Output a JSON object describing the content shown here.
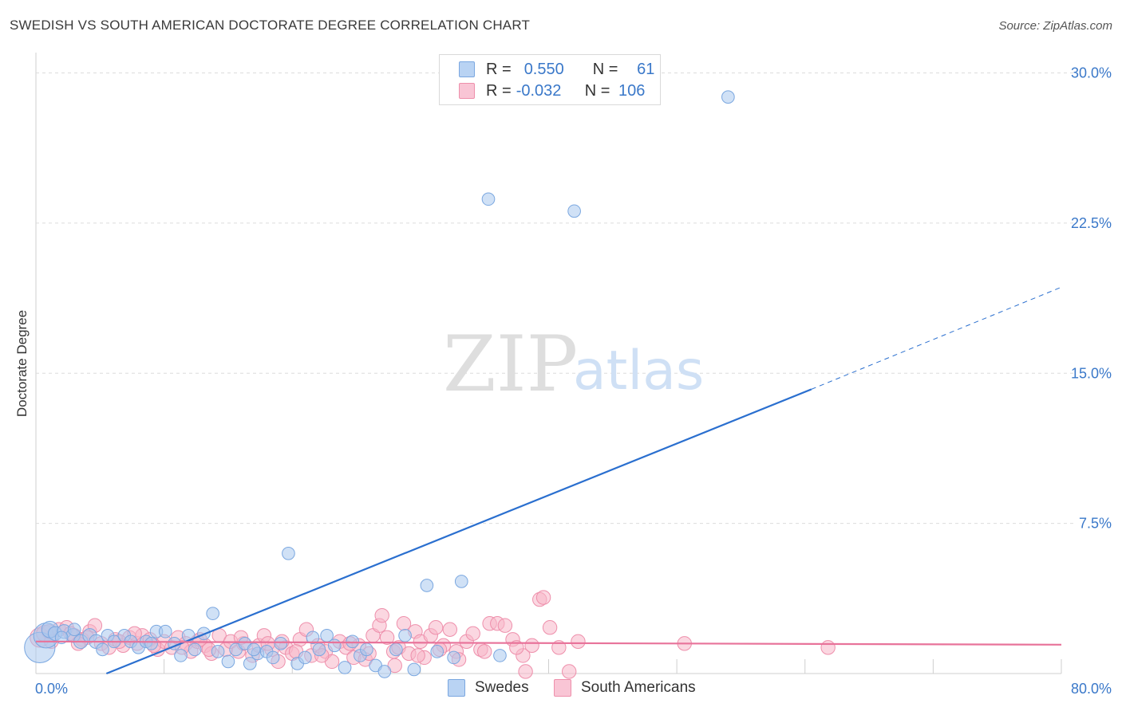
{
  "title": "SWEDISH VS SOUTH AMERICAN DOCTORATE DEGREE CORRELATION CHART",
  "source": "Source: ZipAtlas.com",
  "legend": {
    "rows": [
      {
        "r_label": "R =",
        "r_value": "0.550",
        "n_label": "N =",
        "n_value": "61"
      },
      {
        "r_label": "R =",
        "r_value": "-0.032",
        "n_label": "N =",
        "n_value": "106"
      }
    ]
  },
  "bottom_legend": {
    "swedes": "Swedes",
    "south_americans": "South Americans"
  },
  "watermark": {
    "zip": "ZIP",
    "atlas": "atlas"
  },
  "colors": {
    "swedes_fill": "#a9c8ef",
    "swedes_stroke": "#7aa7e0",
    "swedes_line": "#2a6fcf",
    "sa_fill": "#f7b6c9",
    "sa_stroke": "#ee8fab",
    "sa_line": "#e8739a",
    "grid": "#dcdcdc",
    "tick_text": "#3a78c9"
  },
  "chart_data": {
    "type": "scatter",
    "title": "SWEDISH VS SOUTH AMERICAN DOCTORATE DEGREE CORRELATION CHART",
    "xlabel": "",
    "ylabel": "Doctorate Degree",
    "xlim": [
      0,
      80
    ],
    "ylim": [
      0,
      30.5
    ],
    "x_tick_labels": [
      "0.0%",
      "80.0%"
    ],
    "y_ticks": [
      7.5,
      15.0,
      22.5,
      30.0
    ],
    "y_tick_labels": [
      "7.5%",
      "15.0%",
      "22.5%",
      "30.0%"
    ],
    "grid": true,
    "series": [
      {
        "name": "Swedes",
        "points": [
          [
            0.3,
            1.3,
            22
          ],
          [
            0.8,
            1.9,
            18
          ],
          [
            1.1,
            2.2,
            12
          ],
          [
            1.5,
            2.0,
            10
          ],
          [
            2.2,
            2.1,
            10
          ],
          [
            2.9,
            1.9,
            10
          ],
          [
            3.5,
            1.6,
            10
          ],
          [
            4.2,
            1.9,
            10
          ],
          [
            4.7,
            1.6,
            10
          ],
          [
            5.2,
            1.2,
            9
          ],
          [
            5.6,
            1.9,
            9
          ],
          [
            6.1,
            1.6,
            9
          ],
          [
            6.9,
            1.9,
            9
          ],
          [
            7.4,
            1.6,
            9
          ],
          [
            8.0,
            1.3,
            9
          ],
          [
            8.6,
            1.6,
            9
          ],
          [
            9.4,
            2.1,
            9
          ],
          [
            10.1,
            2.1,
            9
          ],
          [
            10.8,
            1.5,
            9
          ],
          [
            11.3,
            0.9,
            9
          ],
          [
            11.9,
            1.9,
            9
          ],
          [
            12.4,
            1.2,
            9
          ],
          [
            13.1,
            2.0,
            9
          ],
          [
            13.8,
            3.0,
            9
          ],
          [
            14.2,
            1.1,
            9
          ],
          [
            15.0,
            0.6,
            9
          ],
          [
            15.6,
            1.2,
            9
          ],
          [
            16.3,
            1.5,
            9
          ],
          [
            16.7,
            0.5,
            9
          ],
          [
            17.3,
            1.0,
            9
          ],
          [
            18.0,
            1.1,
            9
          ],
          [
            18.5,
            0.8,
            9
          ],
          [
            19.1,
            1.5,
            9
          ],
          [
            19.7,
            6.0,
            9
          ],
          [
            20.4,
            0.5,
            9
          ],
          [
            21.0,
            0.8,
            9
          ],
          [
            21.6,
            1.8,
            9
          ],
          [
            22.1,
            1.2,
            9
          ],
          [
            22.7,
            1.9,
            9
          ],
          [
            23.3,
            1.4,
            9
          ],
          [
            24.1,
            0.3,
            9
          ],
          [
            24.7,
            1.6,
            9
          ],
          [
            25.3,
            0.9,
            9
          ],
          [
            25.8,
            1.2,
            9
          ],
          [
            26.5,
            0.4,
            9
          ],
          [
            27.2,
            0.1,
            9
          ],
          [
            28.1,
            1.2,
            9
          ],
          [
            28.8,
            1.9,
            9
          ],
          [
            29.5,
            0.2,
            9
          ],
          [
            30.5,
            4.4,
            9
          ],
          [
            31.3,
            1.1,
            9
          ],
          [
            32.6,
            0.8,
            9
          ],
          [
            33.2,
            4.6,
            9
          ],
          [
            36.2,
            0.9,
            9
          ],
          [
            35.3,
            23.7,
            9
          ],
          [
            42.0,
            23.1,
            9
          ],
          [
            54.0,
            28.8,
            9
          ],
          [
            3.0,
            2.2,
            9
          ],
          [
            2.0,
            1.8,
            9
          ],
          [
            9.0,
            1.5,
            9
          ],
          [
            17.0,
            1.2,
            9
          ]
        ],
        "trend": {
          "x1": 5.5,
          "y1": 0.0,
          "x2": 60.5,
          "y2": 14.2,
          "dash_to_x": 80.0,
          "dash_to_y": 19.3
        }
      },
      {
        "name": "South Americans",
        "points": [
          [
            0.3,
            1.8,
            14
          ],
          [
            0.7,
            2.0,
            12
          ],
          [
            1.2,
            1.6,
            10
          ],
          [
            1.8,
            2.2,
            10
          ],
          [
            2.4,
            2.3,
            10
          ],
          [
            3.0,
            1.9,
            10
          ],
          [
            3.6,
            1.7,
            10
          ],
          [
            4.2,
            2.1,
            10
          ],
          [
            4.6,
            2.4,
            10
          ],
          [
            5.1,
            1.5,
            10
          ],
          [
            5.7,
            1.3,
            10
          ],
          [
            6.2,
            1.7,
            10
          ],
          [
            6.8,
            1.4,
            10
          ],
          [
            7.3,
            1.8,
            10
          ],
          [
            7.9,
            1.5,
            10
          ],
          [
            8.3,
            1.9,
            10
          ],
          [
            8.9,
            1.7,
            10
          ],
          [
            9.5,
            1.2,
            10
          ],
          [
            10.0,
            1.6,
            10
          ],
          [
            10.6,
            1.3,
            10
          ],
          [
            11.1,
            1.8,
            10
          ],
          [
            11.7,
            1.5,
            10
          ],
          [
            12.1,
            1.1,
            10
          ],
          [
            12.6,
            1.6,
            10
          ],
          [
            13.2,
            1.4,
            10
          ],
          [
            13.7,
            1.0,
            10
          ],
          [
            14.3,
            1.9,
            10
          ],
          [
            14.8,
            1.2,
            10
          ],
          [
            15.2,
            1.6,
            10
          ],
          [
            15.8,
            1.1,
            10
          ],
          [
            16.2,
            1.5,
            10
          ],
          [
            16.9,
            0.9,
            10
          ],
          [
            17.4,
            1.4,
            10
          ],
          [
            17.8,
            1.9,
            10
          ],
          [
            18.4,
            1.2,
            10
          ],
          [
            18.9,
            0.6,
            10
          ],
          [
            19.5,
            1.3,
            10
          ],
          [
            20.0,
            1.0,
            10
          ],
          [
            20.6,
            1.7,
            10
          ],
          [
            21.1,
            2.2,
            10
          ],
          [
            21.5,
            0.9,
            10
          ],
          [
            22.0,
            1.4,
            10
          ],
          [
            22.6,
            1.1,
            10
          ],
          [
            23.1,
            0.6,
            10
          ],
          [
            23.7,
            1.6,
            10
          ],
          [
            24.2,
            1.3,
            10
          ],
          [
            24.8,
            0.8,
            10
          ],
          [
            25.2,
            1.4,
            10
          ],
          [
            25.7,
            0.7,
            10
          ],
          [
            26.3,
            1.9,
            10
          ],
          [
            26.8,
            2.4,
            10
          ],
          [
            27.0,
            2.9,
            10
          ],
          [
            27.4,
            1.8,
            10
          ],
          [
            27.9,
            1.1,
            10
          ],
          [
            28.3,
            1.3,
            10
          ],
          [
            28.7,
            2.5,
            10
          ],
          [
            29.1,
            1.0,
            10
          ],
          [
            29.6,
            2.1,
            10
          ],
          [
            30.0,
            1.6,
            10
          ],
          [
            30.3,
            0.8,
            10
          ],
          [
            30.8,
            1.9,
            10
          ],
          [
            31.2,
            2.3,
            10
          ],
          [
            31.8,
            1.4,
            10
          ],
          [
            32.3,
            2.2,
            10
          ],
          [
            32.8,
            1.1,
            10
          ],
          [
            33.6,
            1.6,
            10
          ],
          [
            34.1,
            2.0,
            10
          ],
          [
            34.7,
            1.2,
            10
          ],
          [
            35.4,
            2.5,
            10
          ],
          [
            36.0,
            2.5,
            10
          ],
          [
            36.6,
            2.4,
            10
          ],
          [
            37.2,
            1.7,
            10
          ],
          [
            38.0,
            0.9,
            10
          ],
          [
            38.7,
            1.4,
            10
          ],
          [
            39.3,
            3.7,
            10
          ],
          [
            39.6,
            3.8,
            10
          ],
          [
            40.1,
            2.3,
            10
          ],
          [
            40.8,
            1.3,
            10
          ],
          [
            41.6,
            0.1,
            10
          ],
          [
            42.3,
            1.6,
            10
          ],
          [
            38.2,
            0.1,
            10
          ],
          [
            50.6,
            1.5,
            10
          ],
          [
            61.8,
            1.3,
            10
          ],
          [
            1.0,
            2.1,
            10
          ],
          [
            2.7,
            2.0,
            10
          ],
          [
            4.0,
            1.8,
            10
          ],
          [
            6.5,
            1.6,
            10
          ],
          [
            9.2,
            1.4,
            10
          ],
          [
            11.4,
            1.3,
            10
          ],
          [
            13.5,
            1.2,
            10
          ],
          [
            16.0,
            1.8,
            10
          ],
          [
            18.1,
            1.5,
            10
          ],
          [
            20.3,
            1.1,
            10
          ],
          [
            22.3,
            0.9,
            10
          ],
          [
            24.5,
            1.5,
            10
          ],
          [
            26.0,
            1.0,
            10
          ],
          [
            28.0,
            0.4,
            10
          ],
          [
            29.8,
            0.9,
            10
          ],
          [
            31.5,
            1.2,
            10
          ],
          [
            33.0,
            0.7,
            10
          ],
          [
            35.0,
            1.1,
            10
          ],
          [
            37.5,
            1.3,
            10
          ],
          [
            3.3,
            1.5,
            10
          ],
          [
            7.7,
            2.0,
            10
          ],
          [
            12.8,
            1.7,
            10
          ],
          [
            19.2,
            1.6,
            10
          ]
        ],
        "trend": {
          "x1": 0.0,
          "y1": 1.6,
          "x2": 80.0,
          "y2": 1.44
        }
      }
    ]
  }
}
